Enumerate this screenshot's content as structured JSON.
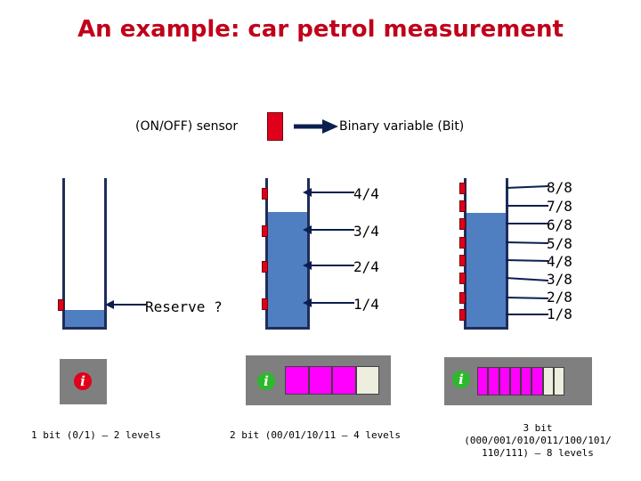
{
  "title": "An example: car petrol measurement",
  "legend": {
    "sensor_label": "(ON/OFF) sensor",
    "variable_label": "Binary variable (Bit)"
  },
  "gauge1": {
    "reserve_label": "Reserve ?",
    "caption": "1 bit (0/1) – 2 levels",
    "info_symbol": "i"
  },
  "gauge2": {
    "levels": [
      "4/4",
      "3/4",
      "2/4",
      "1/4"
    ],
    "caption": "2  bit (00/01/10/11 – 4 levels",
    "info_symbol": "i",
    "display_segments_on": 3,
    "display_segments_total": 4
  },
  "gauge3": {
    "levels": [
      "8/8",
      "7/8",
      "6/8",
      "5/8",
      "4/8",
      "3/8",
      "2/8",
      "1/8"
    ],
    "caption_line1": "3 bit",
    "caption_line2": "(000/001/010/011/100/101/",
    "caption_line3": "110/111) – 8 levels",
    "info_symbol": "i",
    "display_segments_on": 6,
    "display_segments_total": 8
  },
  "colors": {
    "title": "#c0001a",
    "sensor": "#e0001a",
    "fuel": "#4f7fc1",
    "tank_wall": "#1f2d5a",
    "display_panel": "#7f7f7f",
    "segment_on": "#ff00ff",
    "segment_off": "#eeeedf",
    "info_icon_red": "#e0001a",
    "info_icon_green": "#2db82d"
  }
}
